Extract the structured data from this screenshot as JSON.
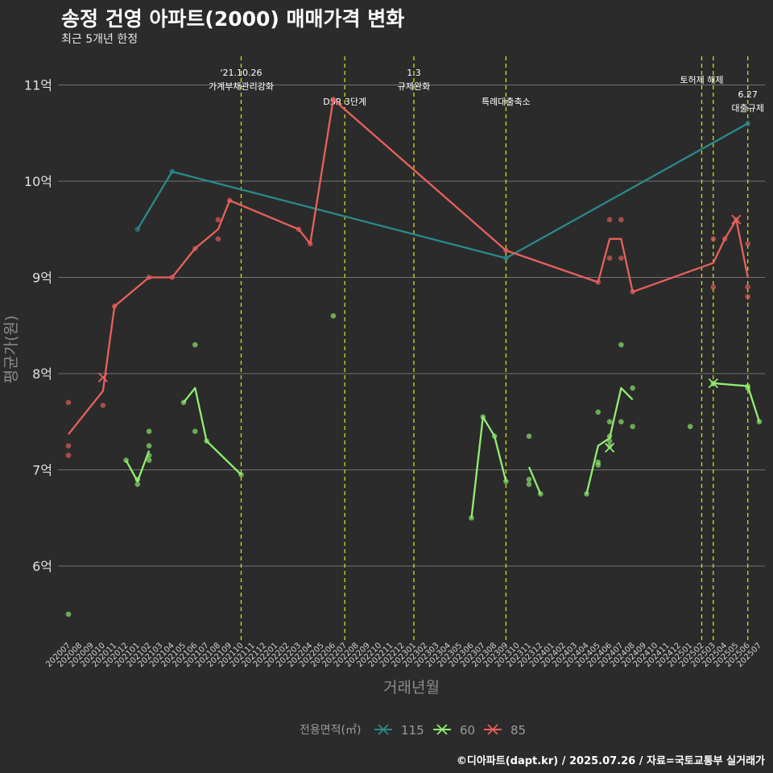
{
  "title": "송정 건영 아파트(2000) 매매가격 변화",
  "subtitle": "최근 5개년 한정",
  "caption": "©디아파트(dapt.kr) / 2025.07.26 / 자료=국토교통부 실거래가",
  "chart_data": {
    "type": "line",
    "xlabel": "거래년월",
    "ylabel": "평균가(원)",
    "ylim": [
      5.25,
      11.3
    ],
    "yticks": [
      6,
      7,
      8,
      9,
      10,
      11
    ],
    "ytick_labels": [
      "6억",
      "7억",
      "8억",
      "9억",
      "10억",
      "11억"
    ],
    "categories": [
      "202007",
      "202008",
      "202009",
      "202010",
      "202011",
      "202012",
      "202101",
      "202102",
      "202103",
      "202104",
      "202105",
      "202106",
      "202107",
      "202108",
      "202109",
      "202110",
      "202111",
      "202112",
      "202201",
      "202202",
      "202203",
      "202204",
      "202205",
      "202206",
      "202207",
      "202208",
      "202209",
      "202210",
      "202211",
      "202212",
      "202301",
      "202302",
      "202303",
      "202304",
      "202305",
      "202306",
      "202307",
      "202308",
      "202309",
      "202310",
      "202311",
      "202312",
      "202401",
      "202402",
      "202403",
      "202404",
      "202405",
      "202406",
      "202407",
      "202408",
      "202409",
      "202410",
      "202411",
      "202412",
      "202501",
      "202502",
      "202503",
      "202504",
      "202505",
      "202506",
      "202507"
    ],
    "legend": {
      "title": "전용면적(㎡)",
      "position": "bottom"
    },
    "events": [
      {
        "x": "202110",
        "labels": [
          "'21.10.26",
          "가계부채관리강화"
        ]
      },
      {
        "x": "202207",
        "labels": [
          "DSR 3단계"
        ]
      },
      {
        "x": "202301",
        "labels": [
          "1.3",
          "규제완화"
        ]
      },
      {
        "x": "202309",
        "labels": [
          "특례대출축소"
        ]
      },
      {
        "x": "202502",
        "labels": [
          "토허제 해제"
        ]
      },
      {
        "x": "202503",
        "labels": []
      },
      {
        "x": "202506",
        "labels": [
          "6.27",
          "대출규제"
        ]
      }
    ],
    "series": [
      {
        "name": "115",
        "color": "#2a8a8a",
        "line": [
          [
            "202101",
            9.5
          ],
          [
            "202104",
            10.1
          ],
          [
            "202309",
            9.2
          ],
          [
            "202506",
            10.6
          ]
        ],
        "points": [
          [
            "202101",
            9.5
          ],
          [
            "202104",
            10.1
          ],
          [
            "202309",
            9.2
          ],
          [
            "202506",
            10.6
          ]
        ],
        "crosses": []
      },
      {
        "name": "60",
        "color": "#90ee70",
        "line": [
          [
            [
              "202012",
              7.1
            ],
            [
              "202101",
              6.88
            ],
            [
              "202102",
              7.2
            ]
          ],
          [
            [
              "202105",
              7.7
            ],
            [
              "202106",
              7.85
            ],
            [
              "202107",
              7.3
            ],
            [
              "202110",
              6.95
            ]
          ],
          [
            [
              "202306",
              6.5
            ],
            [
              "202307",
              7.55
            ],
            [
              "202308",
              7.35
            ],
            [
              "202309",
              6.88
            ]
          ],
          [
            [
              "202311",
              7.03
            ],
            [
              "202312",
              6.75
            ]
          ],
          [
            [
              "202404",
              6.75
            ],
            [
              "202405",
              7.25
            ],
            [
              "202406",
              7.33
            ],
            [
              "202407",
              7.85
            ],
            [
              "202408",
              7.73
            ]
          ],
          [
            [
              "202503",
              7.9
            ],
            [
              "202506",
              7.87
            ],
            [
              "202507",
              7.5
            ]
          ]
        ],
        "points": [
          [
            "202007",
            5.5
          ],
          [
            "202012",
            7.1
          ],
          [
            "202101",
            6.85
          ],
          [
            "202101",
            6.9
          ],
          [
            "202102",
            7.1
          ],
          [
            "202102",
            7.15
          ],
          [
            "202102",
            7.25
          ],
          [
            "202102",
            7.4
          ],
          [
            "202105",
            7.7
          ],
          [
            "202106",
            8.3
          ],
          [
            "202106",
            7.4
          ],
          [
            "202107",
            7.3
          ],
          [
            "202110",
            6.95
          ],
          [
            "202206",
            8.6
          ],
          [
            "202306",
            6.5
          ],
          [
            "202307",
            7.55
          ],
          [
            "202308",
            7.35
          ],
          [
            "202309",
            6.88
          ],
          [
            "202311",
            7.35
          ],
          [
            "202311",
            6.9
          ],
          [
            "202311",
            6.85
          ],
          [
            "202312",
            6.75
          ],
          [
            "202404",
            6.75
          ],
          [
            "202405",
            7.6
          ],
          [
            "202405",
            7.08
          ],
          [
            "202405",
            7.05
          ],
          [
            "202406",
            7.5
          ],
          [
            "202406",
            7.35
          ],
          [
            "202406",
            7.3
          ],
          [
            "202406",
            7.25
          ],
          [
            "202407",
            8.3
          ],
          [
            "202407",
            7.5
          ],
          [
            "202408",
            7.85
          ],
          [
            "202408",
            7.45
          ],
          [
            "202501",
            7.45
          ],
          [
            "202503",
            7.9
          ],
          [
            "202506",
            7.85
          ],
          [
            "202506",
            7.87
          ],
          [
            "202507",
            7.5
          ]
        ],
        "crosses": [
          [
            "202406",
            7.23
          ],
          [
            "202503",
            7.9
          ]
        ]
      },
      {
        "name": "85",
        "color": "#e8605c",
        "line": [
          [
            "202007",
            7.37
          ],
          [
            "202010",
            7.82
          ],
          [
            "202011",
            8.7
          ],
          [
            "202102",
            9.0
          ],
          [
            "202104",
            9.0
          ],
          [
            "202106",
            9.3
          ],
          [
            "202108",
            9.5
          ],
          [
            "202109",
            9.8
          ],
          [
            "202203",
            9.5
          ],
          [
            "202204",
            9.35
          ],
          [
            "202206",
            10.85
          ],
          [
            "202309",
            9.28
          ],
          [
            "202405",
            8.95
          ],
          [
            "202406",
            9.4
          ],
          [
            "202407",
            9.4
          ],
          [
            "202408",
            8.85
          ],
          [
            "202503",
            9.15
          ],
          [
            "202504",
            9.4
          ],
          [
            "202505",
            9.6
          ],
          [
            "202506",
            9.0
          ]
        ],
        "points": [
          [
            "202007",
            7.7
          ],
          [
            "202007",
            7.25
          ],
          [
            "202007",
            7.15
          ],
          [
            "202010",
            7.67
          ],
          [
            "202011",
            8.7
          ],
          [
            "202102",
            9.0
          ],
          [
            "202104",
            9.0
          ],
          [
            "202106",
            9.3
          ],
          [
            "202108",
            9.6
          ],
          [
            "202108",
            9.4
          ],
          [
            "202109",
            9.8
          ],
          [
            "202203",
            9.5
          ],
          [
            "202204",
            9.35
          ],
          [
            "202206",
            10.85
          ],
          [
            "202309",
            9.28
          ],
          [
            "202405",
            8.95
          ],
          [
            "202406",
            9.6
          ],
          [
            "202406",
            9.2
          ],
          [
            "202407",
            9.6
          ],
          [
            "202407",
            9.2
          ],
          [
            "202408",
            8.85
          ],
          [
            "202503",
            9.4
          ],
          [
            "202503",
            8.9
          ],
          [
            "202504",
            9.4
          ],
          [
            "202505",
            9.6
          ],
          [
            "202506",
            9.35
          ],
          [
            "202506",
            8.9
          ],
          [
            "202506",
            8.8
          ]
        ],
        "crosses": [
          [
            "202010",
            7.96
          ],
          [
            "202505",
            9.6
          ]
        ]
      }
    ]
  }
}
